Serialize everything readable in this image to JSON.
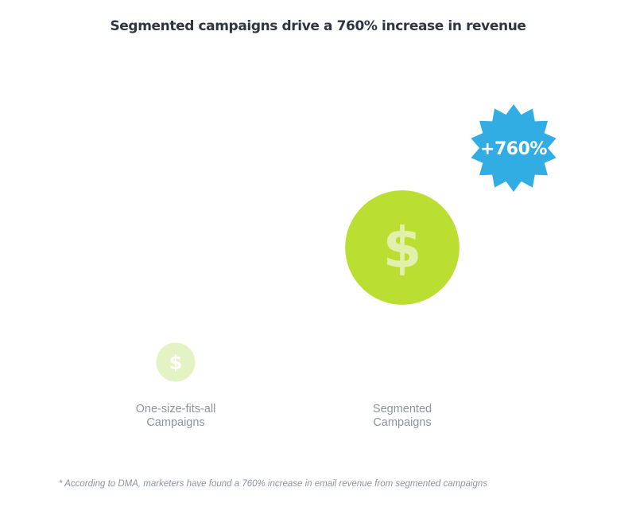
{
  "chart_data": {
    "type": "bubble",
    "title": "Segmented campaigns drive a 760% increase in revenue",
    "categories": [
      "One-size-fits-all Campaigns",
      "Segmented Campaigns"
    ],
    "category_label_lines": [
      [
        "One-size-fits-all",
        "Campaigns"
      ],
      [
        "Segmented",
        "Campaigns"
      ]
    ],
    "values": [
      1,
      8.6
    ],
    "badge": "+760%",
    "icon": "dollar-sign",
    "footnote": "* According to DMA, marketers have found a 760% increase in email revenue from segmented campaigns",
    "colors": {
      "small_bubble": "#e3f3c4",
      "small_icon": "#ffffff",
      "large_bubble": "#bade31",
      "large_icon": "#e1f0ab",
      "badge": "#32ade3",
      "badge_text": "#ffffff",
      "label": "#8d949e",
      "title": "#2e3640"
    }
  }
}
